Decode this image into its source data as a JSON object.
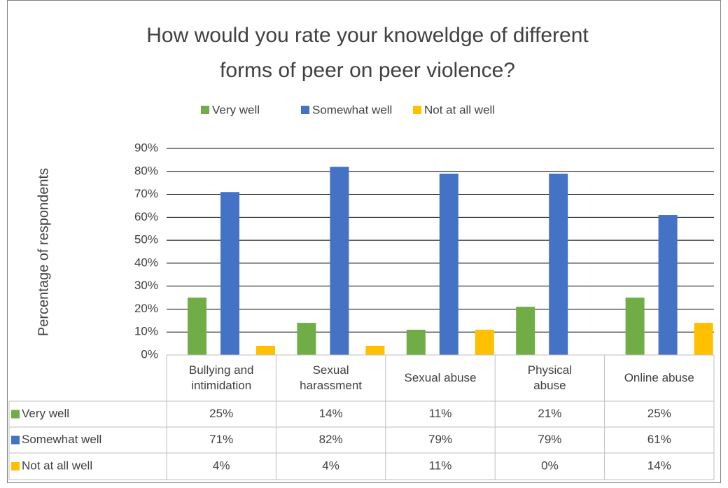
{
  "chart_data": {
    "type": "bar",
    "title": [
      "How would you rate your knoweldge of different",
      "forms of peer on peer violence?"
    ],
    "y_label": "Percentage of respondents",
    "categories": [
      "Bullying and intimidation",
      "Sexual harassment",
      "Sexual abuse",
      "Physical abuse",
      "Online abuse"
    ],
    "series": [
      {
        "name": "Very well",
        "color": "#70ad47",
        "values": [
          25,
          14,
          11,
          21,
          25
        ],
        "value_labels": [
          "25%",
          "14%",
          "11%",
          "21%",
          "25%"
        ]
      },
      {
        "name": "Somewhat well",
        "color": "#4472c4",
        "values": [
          71,
          82,
          79,
          79,
          61
        ],
        "value_labels": [
          "71%",
          "82%",
          "79%",
          "79%",
          "61%"
        ]
      },
      {
        "name": "Not at all well",
        "color": "#ffc000",
        "values": [
          4,
          4,
          11,
          0,
          14
        ],
        "value_labels": [
          "4%",
          "4%",
          "11%",
          "0%",
          "14%"
        ]
      }
    ],
    "ylim": [
      0,
      90
    ],
    "yticks": [
      {
        "value": 0,
        "label": "0%"
      },
      {
        "value": 10,
        "label": "10%"
      },
      {
        "value": 20,
        "label": "20%"
      },
      {
        "value": 30,
        "label": "30%"
      },
      {
        "value": 40,
        "label": "40%"
      },
      {
        "value": 50,
        "label": "50%"
      },
      {
        "value": 60,
        "label": "60%"
      },
      {
        "value": 70,
        "label": "70%"
      },
      {
        "value": 80,
        "label": "80%"
      },
      {
        "value": 90,
        "label": "90%"
      }
    ],
    "grid": true,
    "legend": "top",
    "data_table": true
  }
}
